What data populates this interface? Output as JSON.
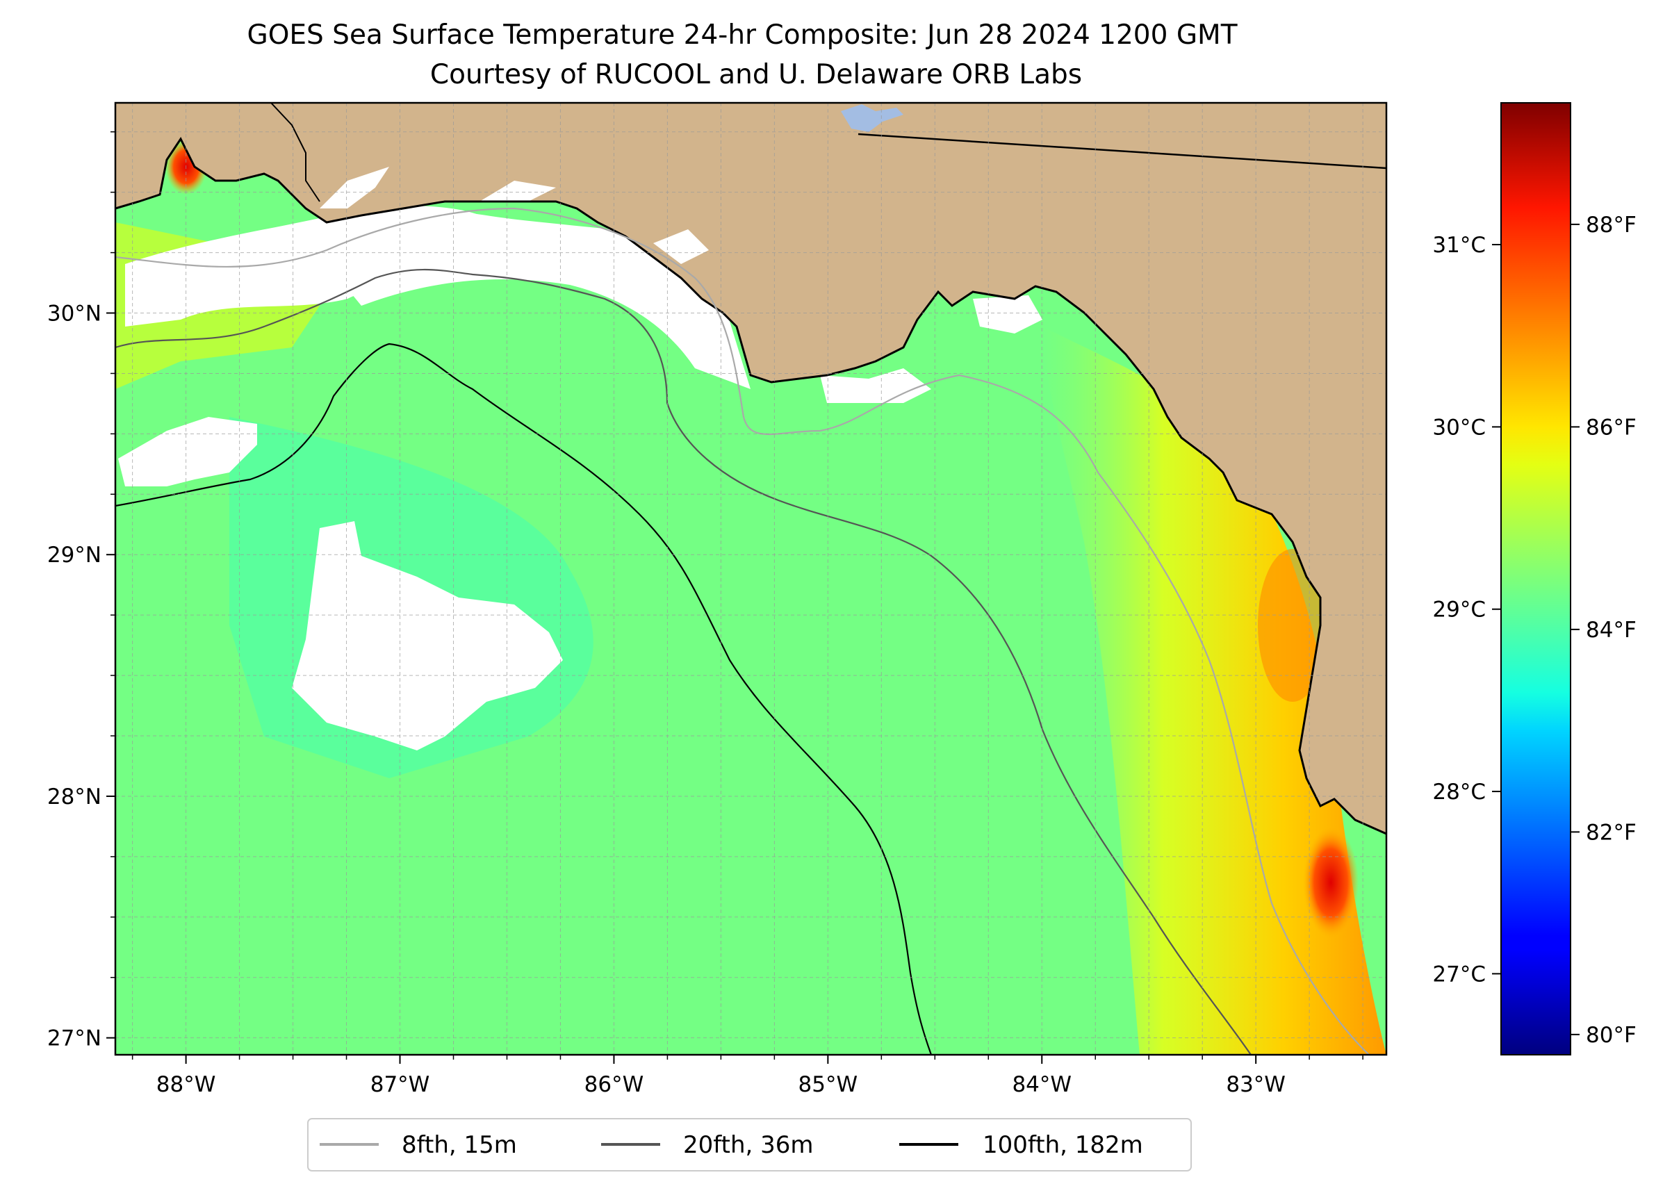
{
  "title": {
    "line1": "GOES Sea Surface Temperature 24-hr Composite: Jun 28 2024 1200 GMT",
    "line2": "Courtesy of RUCOOL and U. Delaware ORB Labs"
  },
  "map": {
    "lon_range": [
      -88.33,
      -82.39
    ],
    "lat_range": [
      26.93,
      30.87
    ],
    "lon_ticks": [
      {
        "value": -88,
        "label": "88°W"
      },
      {
        "value": -87,
        "label": "87°W"
      },
      {
        "value": -86,
        "label": "86°W"
      },
      {
        "value": -85,
        "label": "85°W"
      },
      {
        "value": -84,
        "label": "84°W"
      },
      {
        "value": -83,
        "label": "83°W"
      }
    ],
    "lat_ticks": [
      {
        "value": 27,
        "label": "27°N"
      },
      {
        "value": 28,
        "label": "28°N"
      },
      {
        "value": 29,
        "label": "29°N"
      },
      {
        "value": 30,
        "label": "30°N"
      }
    ],
    "gridlines": "dashed, every 0.25 degrees",
    "colors": {
      "land": "#d2b48c",
      "no_data": "#ffffff",
      "lake": "#a3bde3",
      "coastline": "#000000"
    }
  },
  "legend": {
    "placement": "bottom-center",
    "entries": [
      {
        "label": "8fth, 15m",
        "color": "#a9a9a9"
      },
      {
        "label": "20fth, 36m",
        "color": "#555555"
      },
      {
        "label": "100fth, 182m",
        "color": "#000000"
      }
    ]
  },
  "colorbar": {
    "colormap": "jet",
    "range_f": [
      79.8,
      89.2
    ],
    "fahrenheit_ticks": [
      {
        "value": 80,
        "label": "80°F"
      },
      {
        "value": 82,
        "label": "82°F"
      },
      {
        "value": 84,
        "label": "84°F"
      },
      {
        "value": 86,
        "label": "86°F"
      },
      {
        "value": 88,
        "label": "88°F"
      }
    ],
    "celsius_ticks": [
      {
        "value": 27,
        "label": "27°C"
      },
      {
        "value": 28,
        "label": "28°C"
      },
      {
        "value": 29,
        "label": "29°C"
      },
      {
        "value": 30,
        "label": "30°C"
      },
      {
        "value": 31,
        "label": "31°C"
      }
    ]
  }
}
